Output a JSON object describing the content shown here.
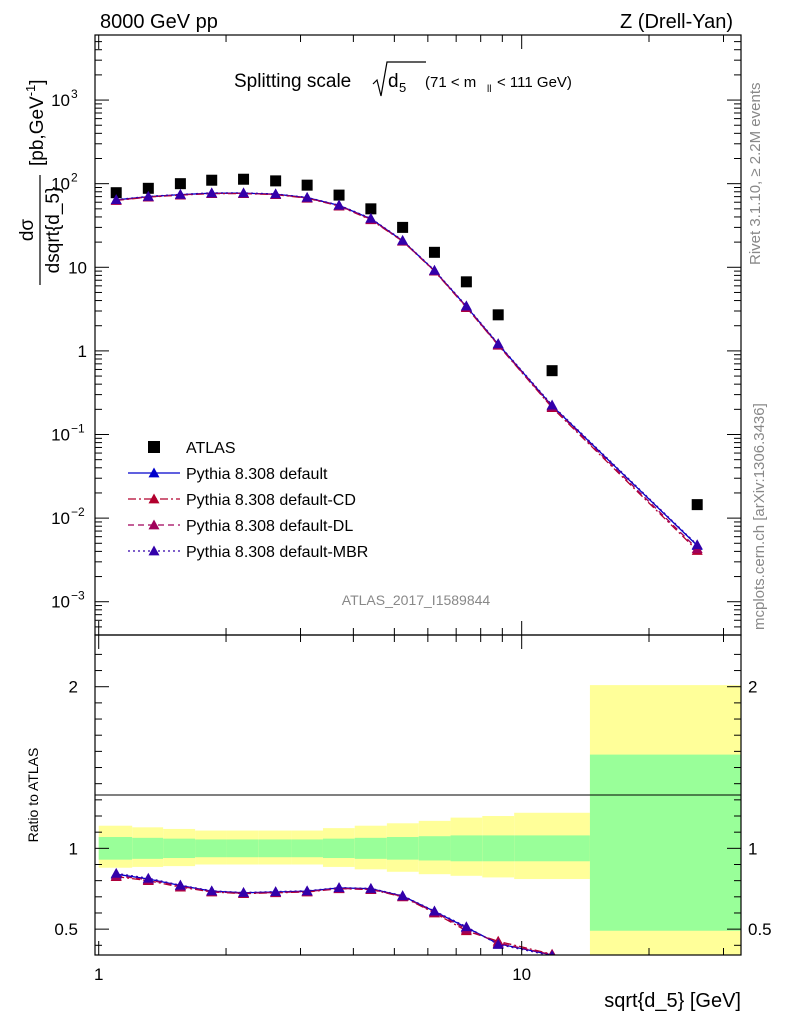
{
  "header": {
    "left": "8000 GeV pp",
    "right": "Z (Drell-Yan)"
  },
  "title": {
    "main": "Splitting scale",
    "symbol": "d",
    "symbol_sub": "5",
    "range": "(71 < m",
    "range_sub": "ll",
    "range_end": " < 111 GeV)"
  },
  "side_labels": {
    "rivet": "Rivet 3.1.10, ≥ 2.2M events",
    "mcplots": "mcplots.cern.ch [arXiv:1306.3436]"
  },
  "watermark": "ATLAS_2017_I1589844",
  "colors": {
    "data": "#000000",
    "default": "#0000cc",
    "cd": "#b2002e",
    "dl": "#a0005a",
    "mbr": "#3300aa",
    "band_inner": "#99ff99",
    "band_outer": "#ffff99"
  },
  "chart_data": [
    {
      "type": "scatter",
      "panel": "main",
      "ylabel": "dσ / dsqrt{d_5} [pb,GeV⁻¹]",
      "ylabel_num": "dσ",
      "ylabel_den": "dsqrt{d_5}",
      "ylabel_unit": "[pb,GeV",
      "ylabel_unit_sup": "-1",
      "ylabel_unit_end": "]",
      "x_scale": "log",
      "y_scale": "log",
      "xlim": [
        0.98,
        33
      ],
      "ylim": [
        0.0004,
        6000
      ],
      "y_ticks": [
        {
          "value": 0.001,
          "base": "10",
          "exp": "−3"
        },
        {
          "value": 0.01,
          "base": "10",
          "exp": "−2"
        },
        {
          "value": 0.1,
          "base": "10",
          "exp": "−1"
        },
        {
          "value": 1,
          "base": "1",
          "exp": ""
        },
        {
          "value": 10,
          "base": "10",
          "exp": ""
        },
        {
          "value": 100,
          "base": "10",
          "exp": "2"
        },
        {
          "value": 1000,
          "base": "10",
          "exp": "3"
        }
      ],
      "legend_position": "bottom-left",
      "series": [
        {
          "name": "ATLAS",
          "style": "data",
          "x": [
            1.1,
            1.31,
            1.56,
            1.85,
            2.2,
            2.62,
            3.11,
            3.7,
            4.4,
            5.23,
            6.22,
            7.4,
            8.8,
            11.8,
            26.0
          ],
          "y": [
            78,
            88,
            100,
            110,
            113,
            108,
            96,
            73,
            50,
            30,
            15.1,
            6.7,
            2.7,
            0.58,
            0.0145
          ]
        },
        {
          "name": "Pythia 8.308 default",
          "style": "solid",
          "x": [
            1.1,
            1.31,
            1.56,
            1.85,
            2.2,
            2.62,
            3.11,
            3.7,
            4.4,
            5.23,
            6.22,
            7.4,
            8.8,
            11.8,
            26.0
          ],
          "y": [
            64,
            70,
            74,
            77,
            77,
            75,
            68,
            55,
            38,
            20.8,
            9.1,
            3.4,
            1.2,
            0.22,
            0.0047
          ]
        },
        {
          "name": "Pythia 8.308 default-CD",
          "style": "dashdot",
          "x": [
            1.1,
            1.31,
            1.56,
            1.85,
            2.2,
            2.62,
            3.11,
            3.7,
            4.4,
            5.23,
            6.22,
            7.4,
            8.8,
            11.8,
            26.0
          ],
          "y": [
            63,
            69,
            73,
            76,
            76,
            74,
            67,
            54,
            37,
            20.5,
            9.0,
            3.3,
            1.17,
            0.21,
            0.0041
          ]
        },
        {
          "name": "Pythia 8.308 default-DL",
          "style": "dashed",
          "x": [
            1.1,
            1.31,
            1.56,
            1.85,
            2.2,
            2.62,
            3.11,
            3.7,
            4.4,
            5.23,
            6.22,
            7.4,
            8.8,
            11.8,
            26.0
          ],
          "y": [
            63.5,
            69.5,
            73.5,
            76.5,
            76.5,
            74.5,
            67.5,
            54.5,
            37.5,
            20.6,
            9.05,
            3.35,
            1.18,
            0.215,
            0.0043
          ]
        },
        {
          "name": "Pythia 8.308 default-MBR",
          "style": "dotted",
          "x": [
            1.1,
            1.31,
            1.56,
            1.85,
            2.2,
            2.62,
            3.11,
            3.7,
            4.4,
            5.23,
            6.22,
            7.4,
            8.8,
            11.8,
            26.0
          ],
          "y": [
            64.5,
            70.5,
            74.5,
            77.5,
            77.5,
            75.5,
            68.5,
            55.5,
            38.5,
            21,
            9.2,
            3.45,
            1.22,
            0.225,
            0.0048
          ]
        }
      ]
    },
    {
      "type": "scatter",
      "panel": "ratio",
      "ylabel": "Ratio to ATLAS",
      "xlabel": "sqrt{d_5} [GeV]",
      "x_scale": "log",
      "xlim": [
        0.98,
        33
      ],
      "ylim": [
        0.34,
        2.32
      ],
      "x_ticks": [
        {
          "value": 1,
          "label": "1"
        },
        {
          "value": 10,
          "label": "10"
        }
      ],
      "y_ticks": [
        {
          "value": 0.5,
          "label": "0.5"
        },
        {
          "value": 1,
          "label": "1"
        },
        {
          "value": 2,
          "label": "2"
        }
      ],
      "bands": [
        {
          "x_low": 1.0,
          "x_high": 1.2,
          "inner": [
            0.93,
            1.07
          ],
          "outer": [
            0.88,
            1.14
          ]
        },
        {
          "x_low": 1.2,
          "x_high": 1.42,
          "inner": [
            0.935,
            1.065
          ],
          "outer": [
            0.885,
            1.13
          ]
        },
        {
          "x_low": 1.42,
          "x_high": 1.69,
          "inner": [
            0.94,
            1.06
          ],
          "outer": [
            0.89,
            1.12
          ]
        },
        {
          "x_low": 1.69,
          "x_high": 2.01,
          "inner": [
            0.945,
            1.055
          ],
          "outer": [
            0.9,
            1.11
          ]
        },
        {
          "x_low": 2.01,
          "x_high": 2.39,
          "inner": [
            0.945,
            1.055
          ],
          "outer": [
            0.9,
            1.11
          ]
        },
        {
          "x_low": 2.39,
          "x_high": 2.85,
          "inner": [
            0.945,
            1.055
          ],
          "outer": [
            0.9,
            1.11
          ]
        },
        {
          "x_low": 2.85,
          "x_high": 3.39,
          "inner": [
            0.945,
            1.055
          ],
          "outer": [
            0.9,
            1.11
          ]
        },
        {
          "x_low": 3.39,
          "x_high": 4.03,
          "inner": [
            0.94,
            1.06
          ],
          "outer": [
            0.885,
            1.125
          ]
        },
        {
          "x_low": 4.03,
          "x_high": 4.8,
          "inner": [
            0.935,
            1.065
          ],
          "outer": [
            0.87,
            1.14
          ]
        },
        {
          "x_low": 4.8,
          "x_high": 5.71,
          "inner": [
            0.93,
            1.07
          ],
          "outer": [
            0.855,
            1.155
          ]
        },
        {
          "x_low": 5.71,
          "x_high": 6.79,
          "inner": [
            0.925,
            1.075
          ],
          "outer": [
            0.84,
            1.17
          ]
        },
        {
          "x_low": 6.79,
          "x_high": 8.07,
          "inner": [
            0.92,
            1.08
          ],
          "outer": [
            0.83,
            1.19
          ]
        },
        {
          "x_low": 8.07,
          "x_high": 9.6,
          "inner": [
            0.92,
            1.08
          ],
          "outer": [
            0.82,
            1.2
          ]
        },
        {
          "x_low": 9.6,
          "x_high": 14.5,
          "inner": [
            0.92,
            1.08
          ],
          "outer": [
            0.81,
            1.22
          ]
        },
        {
          "x_low": 14.5,
          "x_high": 33,
          "inner": [
            0.49,
            1.58
          ],
          "outer": [
            0.3,
            2.01
          ]
        }
      ],
      "series": [
        {
          "name": "Pythia 8.308 default",
          "style": "solid",
          "x": [
            1.1,
            1.31,
            1.56,
            1.85,
            2.2,
            2.62,
            3.11,
            3.7,
            4.4,
            5.23,
            6.22,
            7.4,
            8.8,
            11.8
          ],
          "y": [
            0.84,
            0.81,
            0.77,
            0.735,
            0.725,
            0.73,
            0.735,
            0.755,
            0.75,
            0.705,
            0.61,
            0.51,
            0.41,
            0.34
          ]
        },
        {
          "name": "Pythia 8.308 default-CD",
          "style": "dashdot",
          "x": [
            1.1,
            1.31,
            1.56,
            1.85,
            2.2,
            2.62,
            3.11,
            3.7,
            4.4,
            5.23,
            6.22,
            7.4,
            8.8,
            11.8
          ],
          "y": [
            0.825,
            0.8,
            0.76,
            0.73,
            0.72,
            0.725,
            0.73,
            0.75,
            0.745,
            0.7,
            0.6,
            0.49,
            0.425,
            0.345
          ]
        },
        {
          "name": "Pythia 8.308 default-DL",
          "style": "dashed",
          "x": [
            1.1,
            1.31,
            1.56,
            1.85,
            2.2,
            2.62,
            3.11,
            3.7,
            4.4,
            5.23,
            6.22,
            7.4,
            8.8,
            11.8
          ],
          "y": [
            0.83,
            0.805,
            0.765,
            0.732,
            0.722,
            0.727,
            0.732,
            0.752,
            0.747,
            0.702,
            0.605,
            0.5,
            0.415,
            0.342
          ]
        },
        {
          "name": "Pythia 8.308 default-MBR",
          "style": "dotted",
          "x": [
            1.1,
            1.31,
            1.56,
            1.85,
            2.2,
            2.62,
            3.11,
            3.7,
            4.4,
            5.23,
            6.22,
            7.4,
            8.8,
            11.8
          ],
          "y": [
            0.845,
            0.815,
            0.772,
            0.737,
            0.727,
            0.732,
            0.737,
            0.757,
            0.752,
            0.707,
            0.612,
            0.515,
            0.405,
            0.335
          ]
        }
      ]
    }
  ]
}
